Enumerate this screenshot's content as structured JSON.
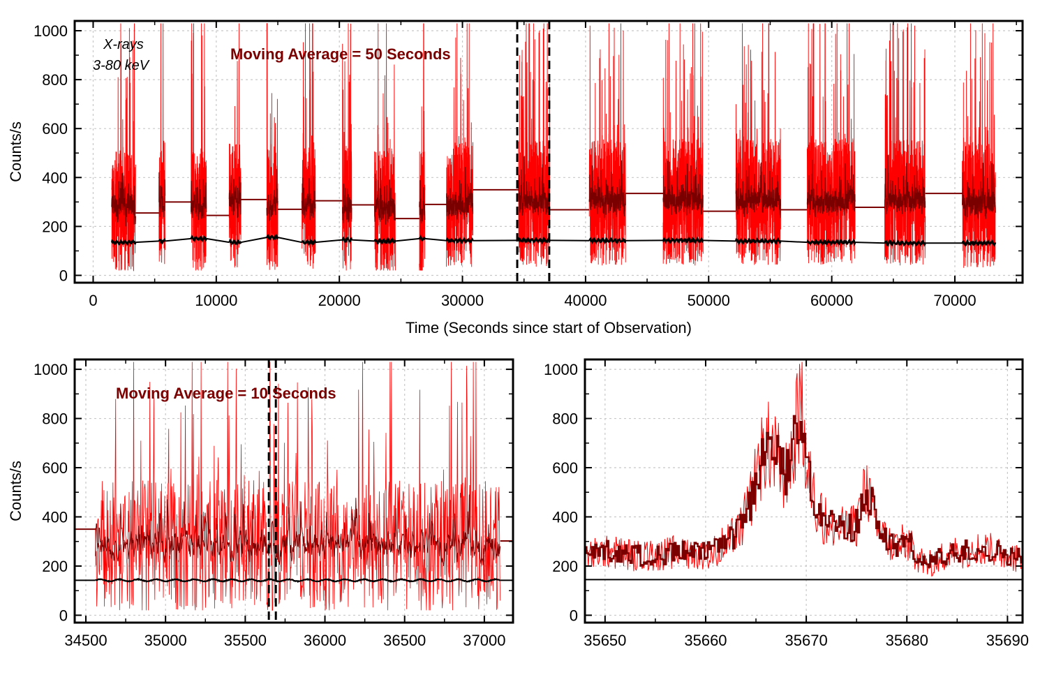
{
  "chart_data": [
    {
      "type": "line",
      "panel": "top",
      "title": "",
      "xlabel": "Time (Seconds since start of Observation)",
      "ylabel": "Counts/s",
      "xlim": [
        -1500,
        75500
      ],
      "ylim": [
        -30,
        1040
      ],
      "xticks": [
        0,
        10000,
        20000,
        30000,
        40000,
        50000,
        60000,
        70000
      ],
      "yticks": [
        0,
        200,
        400,
        600,
        800,
        1000
      ],
      "grid": true,
      "annotations": [
        {
          "text": "X-rays",
          "style": "italic",
          "color": "#000000"
        },
        {
          "text": "3-80 keV",
          "style": "italic",
          "color": "#000000"
        },
        {
          "text": "Moving Average = 50 Seconds",
          "style": "bold",
          "color": "#7a0000"
        }
      ],
      "marker_lines": [
        34450,
        37050
      ],
      "orbit_segments": [
        {
          "start": 1500,
          "end": 3450,
          "mean_raw": 270,
          "mean_smoothed": 270,
          "bg": 135
        },
        {
          "start": 5350,
          "end": 5850,
          "mean_raw": 300,
          "mean_smoothed": 300,
          "bg": 140
        },
        {
          "start": 7950,
          "end": 9200,
          "mean_raw": 270,
          "mean_smoothed": 270,
          "bg": 150
        },
        {
          "start": 11050,
          "end": 12000,
          "mean_raw": 290,
          "mean_smoothed": 290,
          "bg": 135
        },
        {
          "start": 14100,
          "end": 15000,
          "mean_raw": 280,
          "mean_smoothed": 280,
          "bg": 155
        },
        {
          "start": 16950,
          "end": 18050,
          "mean_raw": 285,
          "mean_smoothed": 285,
          "bg": 135
        },
        {
          "start": 20250,
          "end": 21000,
          "mean_raw": 270,
          "mean_smoothed": 270,
          "bg": 145
        },
        {
          "start": 22850,
          "end": 24550,
          "mean_raw": 265,
          "mean_smoothed": 265,
          "bg": 140
        },
        {
          "start": 26500,
          "end": 26950,
          "mean_raw": 260,
          "mean_smoothed": 260,
          "bg": 150
        },
        {
          "start": 28700,
          "end": 30850,
          "mean_raw": 285,
          "mean_smoothed": 285,
          "bg": 142
        },
        {
          "start": 34550,
          "end": 37100,
          "mean_raw": 295,
          "mean_smoothed": 295,
          "bg": 143
        },
        {
          "start": 40300,
          "end": 43250,
          "mean_raw": 300,
          "mean_smoothed": 300,
          "bg": 142
        },
        {
          "start": 46300,
          "end": 49550,
          "mean_raw": 300,
          "mean_smoothed": 300,
          "bg": 143
        },
        {
          "start": 52200,
          "end": 55850,
          "mean_raw": 300,
          "mean_smoothed": 300,
          "bg": 140
        },
        {
          "start": 58000,
          "end": 61900,
          "mean_raw": 300,
          "mean_smoothed": 300,
          "bg": 135
        },
        {
          "start": 64300,
          "end": 67600,
          "mean_raw": 300,
          "mean_smoothed": 300,
          "bg": 132
        },
        {
          "start": 70600,
          "end": 73300,
          "mean_raw": 290,
          "mean_smoothed": 290,
          "bg": 132
        }
      ],
      "gap_levels": [
        {
          "start": 3450,
          "end": 5350,
          "value": 255
        },
        {
          "start": 5850,
          "end": 7950,
          "value": 300
        },
        {
          "start": 9200,
          "end": 11050,
          "value": 245
        },
        {
          "start": 12000,
          "end": 14100,
          "value": 310
        },
        {
          "start": 15000,
          "end": 16950,
          "value": 270
        },
        {
          "start": 18050,
          "end": 20250,
          "value": 305
        },
        {
          "start": 21000,
          "end": 22850,
          "value": 288
        },
        {
          "start": 24550,
          "end": 26500,
          "value": 232
        },
        {
          "start": 26950,
          "end": 28700,
          "value": 290
        },
        {
          "start": 30850,
          "end": 34550,
          "value": 350
        },
        {
          "start": 37100,
          "end": 40300,
          "value": 268
        },
        {
          "start": 43250,
          "end": 46300,
          "value": 335
        },
        {
          "start": 49550,
          "end": 52200,
          "value": 262
        },
        {
          "start": 55850,
          "end": 58000,
          "value": 268
        },
        {
          "start": 61900,
          "end": 64300,
          "value": 278
        },
        {
          "start": 67600,
          "end": 70600,
          "value": 335
        }
      ],
      "series": [
        {
          "role": "raw light curve",
          "color": "#ff0000"
        },
        {
          "role": "moving average",
          "color": "#7a0000"
        },
        {
          "role": "background",
          "color": "#000000"
        }
      ]
    },
    {
      "type": "line",
      "panel": "bottom-left",
      "title": "",
      "xlabel": "",
      "ylabel": "Counts/s",
      "xlim": [
        34430,
        37180
      ],
      "ylim": [
        -30,
        1040
      ],
      "xticks": [
        34500,
        35000,
        35500,
        36000,
        36500,
        37000
      ],
      "yticks": [
        0,
        200,
        400,
        600,
        800,
        1000
      ],
      "grid": true,
      "annotations": [
        {
          "text": "Moving Average = 10 Seconds",
          "style": "bold",
          "color": "#7a0000"
        }
      ],
      "marker_lines": [
        35648,
        35692
      ],
      "segment": {
        "start": 34560,
        "end": 37100,
        "mean_raw": 280,
        "bg": 142
      },
      "gap_levels": [
        {
          "start": 34430,
          "end": 34560,
          "value": 350
        },
        {
          "start": 37100,
          "end": 37180,
          "value": 302
        }
      ],
      "series": [
        {
          "role": "raw light curve",
          "color": "#ff0000"
        },
        {
          "role": "moving average",
          "color": "#7a0000"
        },
        {
          "role": "background",
          "color": "#000000"
        }
      ]
    },
    {
      "type": "line",
      "panel": "bottom-right",
      "title": "",
      "xlabel": "",
      "ylabel": "",
      "xlim": [
        35648,
        35691.5
      ],
      "ylim": [
        -30,
        1040
      ],
      "xticks": [
        35650,
        35660,
        35670,
        35680,
        35690
      ],
      "yticks": [
        0,
        200,
        400,
        600,
        800,
        1000
      ],
      "grid": true,
      "background_level": 145,
      "profile_points": [
        [
          35648,
          240
        ],
        [
          35650,
          260
        ],
        [
          35652,
          250
        ],
        [
          35654,
          240
        ],
        [
          35656,
          250
        ],
        [
          35658,
          260
        ],
        [
          35660,
          255
        ],
        [
          35661,
          270
        ],
        [
          35662,
          290
        ],
        [
          35663,
          330
        ],
        [
          35664,
          400
        ],
        [
          35665,
          560
        ],
        [
          35666,
          700
        ],
        [
          35667,
          640
        ],
        [
          35668,
          560
        ],
        [
          35669,
          760
        ],
        [
          35669.5,
          860
        ],
        [
          35670,
          600
        ],
        [
          35671,
          440
        ],
        [
          35672,
          380
        ],
        [
          35673,
          360
        ],
        [
          35674,
          340
        ],
        [
          35675,
          380
        ],
        [
          35676,
          520
        ],
        [
          35677,
          360
        ],
        [
          35678,
          300
        ],
        [
          35679,
          280
        ],
        [
          35680,
          300
        ],
        [
          35681,
          240
        ],
        [
          35682,
          200
        ],
        [
          35683,
          230
        ],
        [
          35685,
          260
        ],
        [
          35687,
          270
        ],
        [
          35689,
          260
        ],
        [
          35690.5,
          240
        ],
        [
          35691.5,
          230
        ]
      ],
      "series": [
        {
          "role": "raw light curve",
          "color": "#ff0000"
        },
        {
          "role": "moving average",
          "color": "#7a0000"
        },
        {
          "role": "background",
          "color": "#000000"
        }
      ]
    }
  ]
}
